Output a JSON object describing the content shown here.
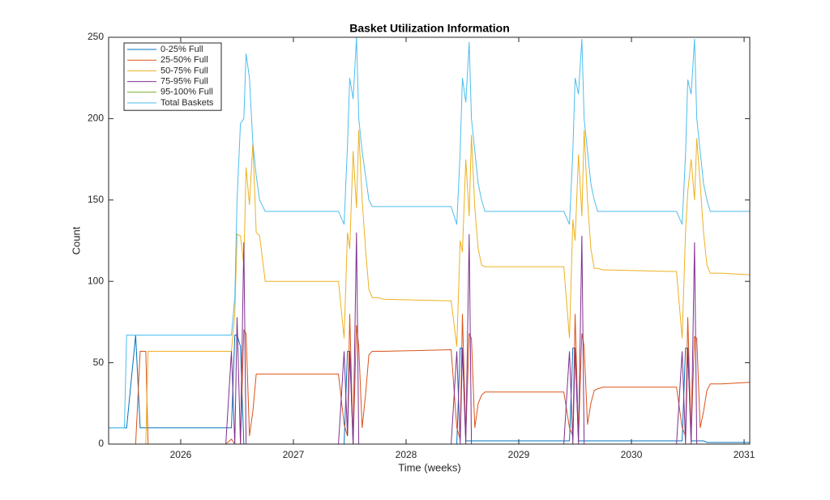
{
  "chart_data": {
    "type": "line",
    "title": "Basket Utilization Information",
    "x_label": "Time (weeks)",
    "y_label": "Count",
    "x": [
      2025.36,
      2025.5,
      2025.52,
      2025.6,
      2025.64,
      2025.69,
      2025.71,
      2026.4,
      2026.45,
      2026.48,
      2026.5,
      2026.53,
      2026.56,
      2026.58,
      2026.61,
      2026.64,
      2026.67,
      2026.7,
      2026.75,
      2026.8,
      2027.4,
      2027.45,
      2027.48,
      2027.5,
      2027.53,
      2027.56,
      2027.58,
      2027.61,
      2027.64,
      2027.67,
      2027.7,
      2027.75,
      2027.8,
      2028.4,
      2028.45,
      2028.48,
      2028.5,
      2028.53,
      2028.56,
      2028.58,
      2028.61,
      2028.64,
      2028.67,
      2028.7,
      2028.75,
      2028.8,
      2029.4,
      2029.45,
      2029.48,
      2029.5,
      2029.53,
      2029.56,
      2029.58,
      2029.61,
      2029.64,
      2029.67,
      2029.7,
      2029.75,
      2029.8,
      2030.4,
      2030.45,
      2030.48,
      2030.5,
      2030.53,
      2030.56,
      2030.58,
      2030.61,
      2030.64,
      2030.67,
      2030.7,
      2030.75,
      2030.8,
      2031.05
    ],
    "series": [
      {
        "name": "0-25% Full",
        "color": "#0072BD",
        "values": [
          10,
          10,
          10,
          67,
          10,
          10,
          10,
          10,
          10,
          67,
          67,
          60,
          0,
          0,
          0,
          0,
          0,
          0,
          0,
          0,
          0,
          0,
          57,
          57,
          0,
          0,
          0,
          0,
          0,
          0,
          0,
          0,
          0,
          0,
          0,
          59,
          59,
          2,
          2,
          2,
          2,
          2,
          2,
          2,
          2,
          2,
          2,
          2,
          59,
          59,
          2,
          2,
          2,
          2,
          2,
          2,
          2,
          2,
          2,
          2,
          2,
          59,
          59,
          2,
          2,
          2,
          2,
          2,
          1,
          1,
          1,
          1,
          1
        ]
      },
      {
        "name": "25-50% Full",
        "color": "#D95319",
        "values": [
          0,
          0,
          0,
          0,
          57,
          57,
          0,
          0,
          3,
          0,
          0,
          0,
          70,
          68,
          5,
          20,
          43,
          43,
          43,
          43,
          43,
          12,
          5,
          80,
          0,
          73,
          60,
          10,
          30,
          55,
          57,
          57,
          57,
          58,
          10,
          3,
          80,
          5,
          68,
          65,
          10,
          25,
          30,
          32,
          32,
          32,
          32,
          10,
          5,
          80,
          5,
          68,
          60,
          12,
          25,
          33,
          34,
          35,
          35,
          35,
          10,
          5,
          78,
          5,
          66,
          65,
          10,
          20,
          33,
          37,
          37,
          37,
          38
        ]
      },
      {
        "name": "50-75% Full",
        "color": "#EDB120",
        "values": [
          0,
          0,
          0,
          0,
          0,
          0,
          57,
          57,
          57,
          80,
          129,
          128,
          110,
          170,
          147,
          185,
          130,
          128,
          100,
          100,
          100,
          65,
          130,
          120,
          180,
          145,
          193,
          150,
          120,
          95,
          90,
          90,
          89,
          88,
          60,
          125,
          118,
          175,
          140,
          190,
          145,
          120,
          110,
          109,
          109,
          109,
          109,
          65,
          138,
          125,
          178,
          140,
          193,
          150,
          120,
          108,
          108,
          107,
          107,
          106,
          65,
          130,
          155,
          175,
          150,
          188,
          160,
          130,
          110,
          105,
          105,
          105,
          104
        ]
      },
      {
        "name": "75-95% Full",
        "color": "#7E2F8E",
        "values": [
          0,
          0,
          0,
          0,
          0,
          0,
          0,
          0,
          57,
          0,
          78,
          0,
          124,
          0,
          0,
          0,
          0,
          0,
          0,
          0,
          0,
          57,
          5,
          57,
          0,
          130,
          0,
          0,
          0,
          0,
          0,
          0,
          0,
          0,
          57,
          0,
          59,
          0,
          129,
          0,
          0,
          0,
          0,
          0,
          0,
          0,
          0,
          57,
          0,
          59,
          0,
          128,
          0,
          0,
          0,
          0,
          0,
          0,
          0,
          0,
          57,
          0,
          59,
          0,
          124,
          0,
          0,
          0,
          0,
          0,
          0,
          0,
          0
        ]
      },
      {
        "name": "95-100% Full",
        "color": "#77AC30",
        "values": [
          0,
          0,
          0,
          0,
          0,
          0,
          0,
          0,
          0,
          0,
          0,
          0,
          0,
          0,
          0,
          0,
          0,
          0,
          0,
          0,
          0,
          0,
          0,
          0,
          0,
          0,
          0,
          0,
          0,
          0,
          0,
          0,
          0,
          0,
          0,
          0,
          0,
          0,
          0,
          0,
          0,
          0,
          0,
          0,
          0,
          0,
          0,
          0,
          0,
          0,
          0,
          0,
          0,
          0,
          0,
          0,
          0,
          0,
          0,
          0,
          0,
          0,
          0,
          0,
          0,
          0,
          0,
          0,
          0,
          0,
          0,
          0,
          0
        ]
      },
      {
        "name": "Total Baskets",
        "color": "#4DBEEE",
        "values": [
          10,
          10,
          67,
          67,
          67,
          67,
          67,
          67,
          67,
          90,
          150,
          197,
          200,
          240,
          225,
          185,
          165,
          150,
          143,
          143,
          143,
          135,
          184,
          225,
          212,
          250,
          200,
          180,
          165,
          150,
          146,
          146,
          146,
          146,
          135,
          180,
          225,
          210,
          247,
          200,
          180,
          160,
          150,
          143,
          143,
          143,
          143,
          135,
          180,
          225,
          215,
          249,
          200,
          180,
          160,
          150,
          143,
          143,
          143,
          143,
          135,
          178,
          224,
          215,
          249,
          200,
          180,
          160,
          150,
          143,
          143,
          143,
          143
        ]
      }
    ],
    "xlim": [
      2025.36,
      2031.05
    ],
    "xticks": [
      2026,
      2027,
      2028,
      2029,
      2030,
      2031
    ],
    "ylim": [
      0,
      250
    ],
    "yticks": [
      0,
      50,
      100,
      150,
      200,
      250
    ],
    "legend": "upper-left",
    "grid": false
  }
}
